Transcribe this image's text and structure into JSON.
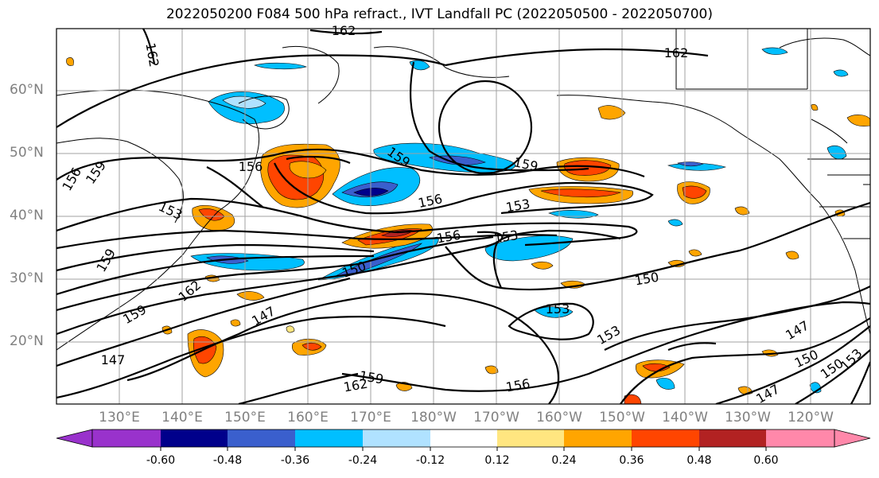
{
  "title": "2022050200 F084 500 hPa refract., IVT Landfall PC (2022050500 - 2022050700)",
  "lat_labels": [
    "60°N",
    "50°N",
    "40°N",
    "30°N",
    "20°N"
  ],
  "lon_labels": [
    "130°E",
    "140°E",
    "150°E",
    "160°E",
    "170°E",
    "180°W",
    "170°W",
    "160°W",
    "150°W",
    "140°W",
    "130°W",
    "120°W"
  ],
  "contour_labels": [
    "162",
    "162",
    "162",
    "156",
    "159",
    "159",
    "156",
    "153",
    "156",
    "159",
    "153",
    "156",
    "153",
    "150",
    "162",
    "159",
    "147",
    "147",
    "159",
    "162",
    "150",
    "153",
    "153",
    "156",
    "147",
    "150",
    "150",
    "153",
    "147",
    "159"
  ],
  "colorbar": {
    "ticks": [
      "-0.60",
      "-0.48",
      "-0.36",
      "-0.24",
      "-0.12",
      "0.12",
      "0.24",
      "0.36",
      "0.48",
      "0.60"
    ],
    "colors": [
      "#9932cc",
      "#00008b",
      "#3a5fcd",
      "#00bfff",
      "#b0e2ff",
      "#ffffff",
      "#ffe680",
      "#ffa500",
      "#ff4500",
      "#b22222",
      "#ff88aa"
    ]
  },
  "field_colors": {
    "neg_strong": "#00008b",
    "neg_mid": "#3a5fcd",
    "neg": "#00bfff",
    "neg_weak": "#b0e2ff",
    "pos_weak": "#ffe680",
    "pos": "#ffa500",
    "pos_mid": "#ff4500",
    "pos_strong": "#b22222",
    "contour": "#000000",
    "coast": "#000000",
    "grid": "#a0a0a0"
  }
}
